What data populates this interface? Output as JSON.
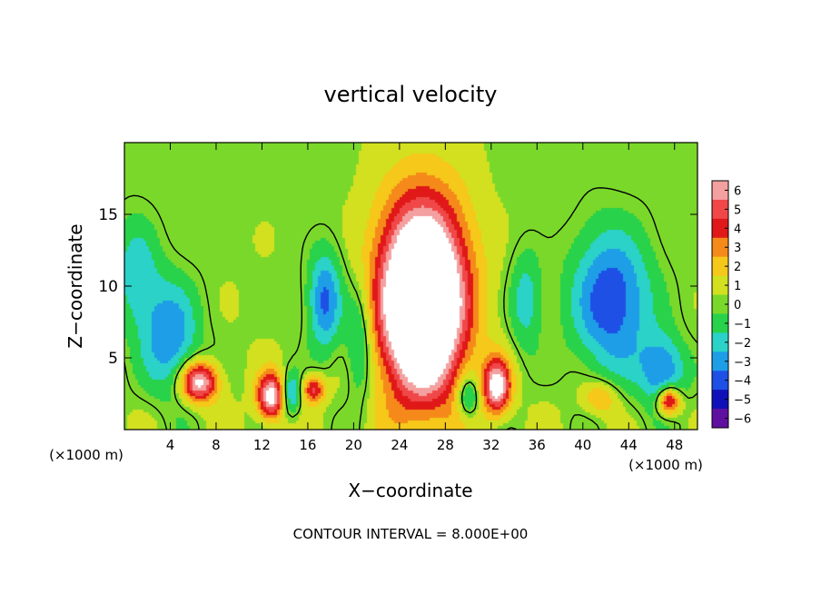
{
  "chart_data": {
    "type": "heatmap",
    "title": "vertical velocity",
    "xlabel": "X−coordinate",
    "ylabel": "Z−coordinate",
    "x_unit_left": "(×1000 m)",
    "x_unit_right": "(×1000 m)",
    "footer": "CONTOUR INTERVAL = 8.000E+00",
    "xlim": [
      0,
      50
    ],
    "ylim": [
      0,
      20
    ],
    "x_ticks": [
      4,
      8,
      12,
      16,
      20,
      24,
      28,
      32,
      36,
      40,
      44,
      48
    ],
    "y_ticks": [
      5,
      10,
      15
    ],
    "x_tick_labels": [
      "4",
      "8",
      "12",
      "16",
      "20",
      "24",
      "28",
      "32",
      "36",
      "40",
      "44",
      "48"
    ],
    "y_tick_labels": [
      "5",
      "10",
      "15"
    ],
    "colorbar": {
      "levels": [
        6,
        5,
        4,
        3,
        2,
        1,
        0,
        -1,
        -2,
        -3,
        -4,
        -5,
        -6
      ],
      "labels": [
        "6",
        "5",
        "4",
        "3",
        "2",
        "1",
        "0",
        "−1",
        "−2",
        "−3",
        "−4",
        "−5",
        "−6"
      ],
      "colors": [
        "#f4a0a0",
        "#f04848",
        "#e01818",
        "#f58a1a",
        "#f5c81a",
        "#d2e020",
        "#7ad82a",
        "#28d24a",
        "#2ad2c8",
        "#1e9ee6",
        "#1e50e6",
        "#1010b8",
        "#6010a0"
      ]
    },
    "features": [
      {
        "kind": "updraft",
        "x": 26,
        "z": 9,
        "sx": 3.6,
        "sz": 6.5,
        "amp": 14
      },
      {
        "kind": "updraft",
        "x": 12.8,
        "z": 2.3,
        "sx": 1.2,
        "sz": 1.6,
        "amp": 7
      },
      {
        "kind": "updraft",
        "x": 32.5,
        "z": 3.0,
        "sx": 1.2,
        "sz": 1.9,
        "amp": 7
      },
      {
        "kind": "updraft",
        "x": 6.5,
        "z": 3.3,
        "sx": 1.6,
        "sz": 1.4,
        "amp": 7
      },
      {
        "kind": "updraft",
        "x": 47.5,
        "z": 2.0,
        "sx": 1.0,
        "sz": 1.0,
        "amp": 6
      },
      {
        "kind": "updraft",
        "x": 16.5,
        "z": 2.8,
        "sx": 1.0,
        "sz": 1.0,
        "amp": 4.5
      },
      {
        "kind": "updraft",
        "x": 41.5,
        "z": 2.2,
        "sx": 1.6,
        "sz": 1.2,
        "amp": 2.6
      },
      {
        "kind": "downdraft",
        "x": 42.5,
        "z": 9,
        "sx": 3.5,
        "sz": 5,
        "amp": -4.8
      },
      {
        "kind": "downdraft",
        "x": 17.5,
        "z": 9,
        "sx": 1.5,
        "sz": 3.5,
        "amp": -4.2
      },
      {
        "kind": "downdraft",
        "x": 4,
        "z": 6.5,
        "sx": 2.5,
        "sz": 4,
        "amp": -3.8
      },
      {
        "kind": "downdraft",
        "x": 1,
        "z": 11,
        "sx": 2,
        "sz": 4,
        "amp": -2.5
      },
      {
        "kind": "downdraft",
        "x": 14.5,
        "z": 2.5,
        "sx": 0.9,
        "sz": 1.5,
        "amp": -3.5
      },
      {
        "kind": "downdraft",
        "x": 30,
        "z": 2.3,
        "sx": 1.0,
        "sz": 1.5,
        "amp": -3.2
      },
      {
        "kind": "downdraft",
        "x": 20.5,
        "z": 6,
        "sx": 1.2,
        "sz": 4,
        "amp": -2.8
      },
      {
        "kind": "downdraft",
        "x": 35,
        "z": 9,
        "sx": 1.4,
        "sz": 3.5,
        "amp": -2.5
      },
      {
        "kind": "downdraft",
        "x": 47,
        "z": 4,
        "sx": 2,
        "sz": 2.5,
        "amp": -4
      }
    ]
  }
}
